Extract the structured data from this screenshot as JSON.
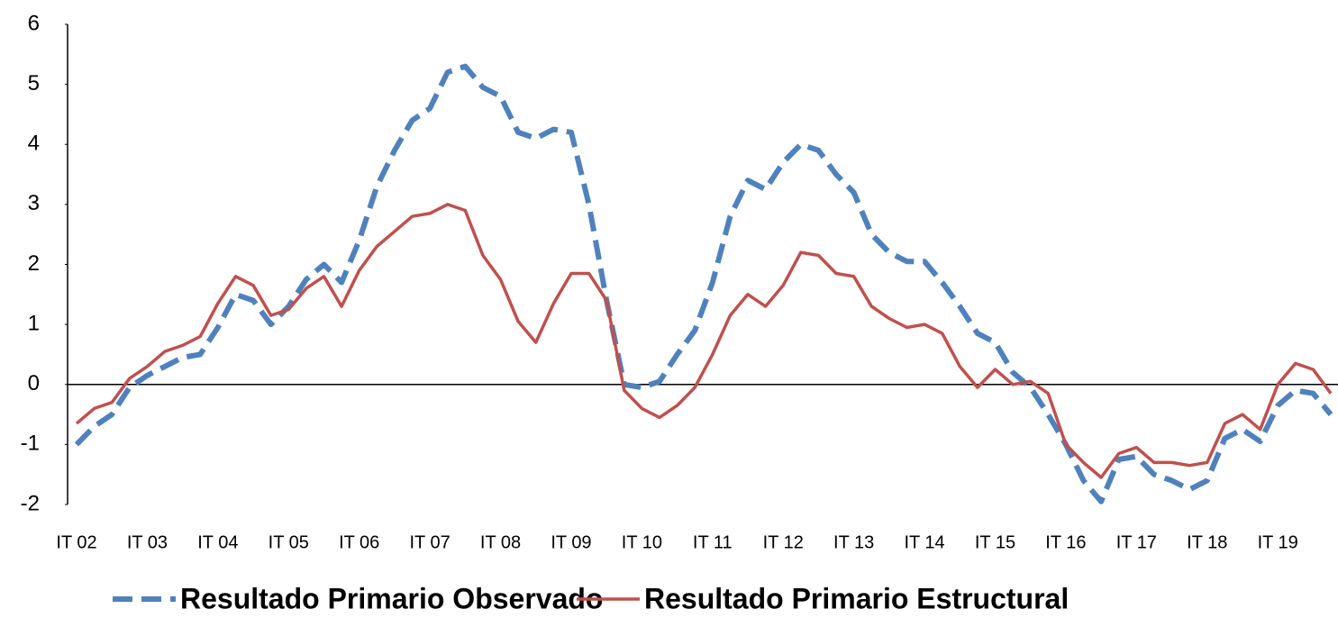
{
  "chart_data": {
    "type": "line",
    "categories": [
      "IT 02",
      null,
      null,
      null,
      "IT 03",
      null,
      null,
      null,
      "IT 04",
      null,
      null,
      null,
      "IT 05",
      null,
      null,
      null,
      "IT 06",
      null,
      null,
      null,
      "IT 07",
      null,
      null,
      null,
      "IT 08",
      null,
      null,
      null,
      "IT 09",
      null,
      null,
      null,
      "IT 10",
      null,
      null,
      null,
      "IT 11",
      null,
      null,
      null,
      "IT 12",
      null,
      null,
      null,
      "IT 13",
      null,
      null,
      null,
      "IT 14",
      null,
      null,
      null,
      "IT 15",
      null,
      null,
      null,
      "IT 16",
      null,
      null,
      null,
      "IT 17",
      null,
      null,
      null,
      "IT 18",
      null,
      null,
      null,
      "IT 19",
      null,
      null,
      null
    ],
    "series": [
      {
        "name": "Resultado Primario Observado",
        "color": "#4f81bd",
        "dash": true,
        "values": [
          -1.0,
          -0.7,
          -0.5,
          -0.05,
          0.15,
          0.3,
          0.45,
          0.5,
          0.95,
          1.5,
          1.4,
          1.0,
          1.3,
          1.75,
          2.0,
          1.7,
          2.4,
          3.3,
          3.9,
          4.4,
          4.6,
          5.2,
          5.3,
          4.95,
          4.8,
          4.2,
          4.1,
          4.25,
          4.2,
          3.0,
          1.4,
          0.0,
          -0.05,
          0.05,
          0.5,
          0.9,
          1.7,
          2.8,
          3.4,
          3.25,
          3.7,
          4.0,
          3.9,
          3.5,
          3.2,
          2.5,
          2.2,
          2.05,
          2.05,
          1.7,
          1.3,
          0.85,
          0.7,
          0.2,
          -0.05,
          -0.5,
          -1.0,
          -1.6,
          -1.95,
          -1.25,
          -1.2,
          -1.5,
          -1.6,
          -1.75,
          -1.6,
          -0.9,
          -0.75,
          -0.95,
          -0.35,
          -0.1,
          -0.15,
          -0.5
        ]
      },
      {
        "name": "Resultado Primario Estructural",
        "color": "#c0504d",
        "dash": false,
        "values": [
          -0.65,
          -0.4,
          -0.3,
          0.1,
          0.3,
          0.55,
          0.65,
          0.8,
          1.35,
          1.8,
          1.65,
          1.15,
          1.25,
          1.6,
          1.8,
          1.3,
          1.9,
          2.3,
          2.55,
          2.8,
          2.85,
          3.0,
          2.9,
          2.15,
          1.75,
          1.05,
          0.7,
          1.35,
          1.85,
          1.85,
          1.4,
          -0.1,
          -0.4,
          -0.55,
          -0.35,
          -0.05,
          0.5,
          1.15,
          1.5,
          1.3,
          1.65,
          2.2,
          2.15,
          1.85,
          1.8,
          1.3,
          1.1,
          0.95,
          1.0,
          0.85,
          0.3,
          -0.05,
          0.25,
          0.0,
          0.05,
          -0.15,
          -1.0,
          -1.3,
          -1.55,
          -1.15,
          -1.05,
          -1.3,
          -1.3,
          -1.35,
          -1.3,
          -0.65,
          -0.5,
          -0.75,
          0.0,
          0.35,
          0.25,
          -0.15
        ]
      }
    ],
    "ylim": [
      -2,
      6
    ],
    "yticks": [
      -2,
      -1,
      0,
      1,
      2,
      3,
      4,
      5,
      6
    ],
    "grid": false,
    "legend": "bottom"
  }
}
